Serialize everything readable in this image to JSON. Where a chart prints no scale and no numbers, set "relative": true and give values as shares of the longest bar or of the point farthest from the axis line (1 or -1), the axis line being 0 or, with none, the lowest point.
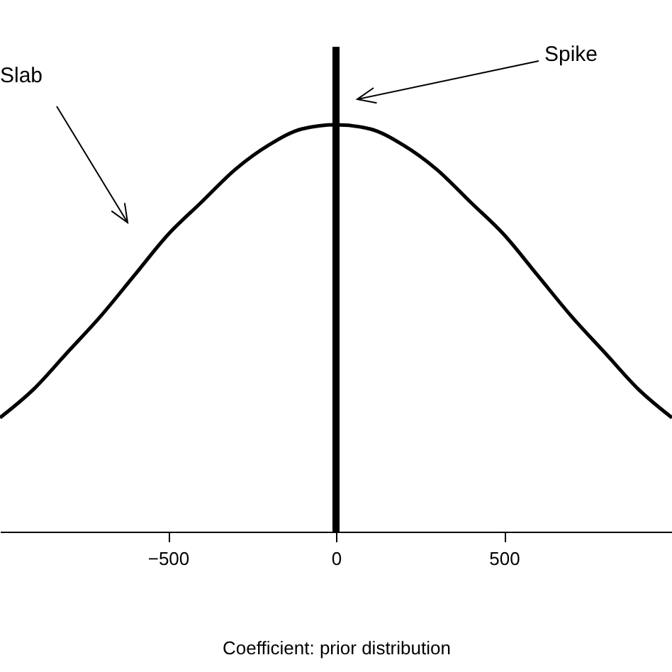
{
  "chart_data": {
    "type": "line",
    "relative": true,
    "xlabel": "Coefficient: prior distribution",
    "xlim": [
      -1000,
      1000
    ],
    "xticks": [
      -500,
      0,
      500
    ],
    "series": [
      {
        "color": "#000000",
        "x": [
          -1000,
          -900,
          -800,
          -700,
          -600,
          -500,
          -400,
          -300,
          -200,
          -100,
          0,
          100,
          200,
          300,
          400,
          500,
          600,
          700,
          800,
          900,
          1000
        ],
        "values": [
          0.28,
          0.35,
          0.44,
          0.53,
          0.63,
          0.73,
          0.81,
          0.89,
          0.95,
          0.99,
          1,
          0.99,
          0.95,
          0.89,
          0.81,
          0.73,
          0.63,
          0.53,
          0.44,
          0.35,
          0.28
        ]
      }
    ],
    "ref_lines": [
      {
        "axis": "x",
        "value": 0,
        "color": "#000000"
      }
    ],
    "annotations": [
      "Slab",
      "Spike"
    ],
    "grid": false
  }
}
